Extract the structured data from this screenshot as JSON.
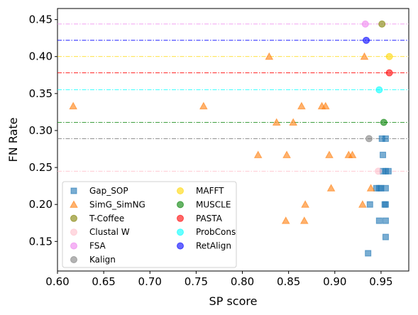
{
  "chart_data": {
    "type": "scatter",
    "xlabel": "SP score",
    "ylabel": "FN Rate",
    "xlim": [
      0.6,
      0.98
    ],
    "ylim": [
      0.11,
      0.465
    ],
    "x_ticks": [
      "0.60",
      "0.65",
      "0.70",
      "0.75",
      "0.80",
      "0.85",
      "0.90",
      "0.95"
    ],
    "y_ticks": [
      "0.15",
      "0.20",
      "0.25",
      "0.30",
      "0.35",
      "0.40",
      "0.45"
    ],
    "grid": false,
    "legend_position": "lower-left",
    "series": [
      {
        "name": "Gap_SOP",
        "marker": "square",
        "color": "#1f77b4",
        "points": [
          [
            0.936,
            0.134
          ],
          [
            0.955,
            0.156
          ],
          [
            0.955,
            0.178
          ],
          [
            0.948,
            0.178
          ],
          [
            0.954,
            0.2
          ],
          [
            0.955,
            0.2
          ],
          [
            0.938,
            0.2
          ],
          [
            0.945,
            0.222
          ],
          [
            0.95,
            0.222
          ],
          [
            0.955,
            0.222
          ],
          [
            0.948,
            0.222
          ],
          [
            0.952,
            0.245
          ],
          [
            0.955,
            0.245
          ],
          [
            0.958,
            0.245
          ],
          [
            0.952,
            0.267
          ],
          [
            0.955,
            0.289
          ],
          [
            0.951,
            0.289
          ]
        ]
      },
      {
        "name": "SimG_SimNG",
        "marker": "triangle",
        "color": "#ff7f0e",
        "points": [
          [
            0.617,
            0.333
          ],
          [
            0.758,
            0.333
          ],
          [
            0.864,
            0.333
          ],
          [
            0.886,
            0.333
          ],
          [
            0.89,
            0.333
          ],
          [
            0.829,
            0.4
          ],
          [
            0.932,
            0.4
          ],
          [
            0.837,
            0.311
          ],
          [
            0.855,
            0.311
          ],
          [
            0.817,
            0.267
          ],
          [
            0.848,
            0.267
          ],
          [
            0.894,
            0.267
          ],
          [
            0.915,
            0.267
          ],
          [
            0.919,
            0.267
          ],
          [
            0.896,
            0.222
          ],
          [
            0.939,
            0.222
          ],
          [
            0.868,
            0.2
          ],
          [
            0.93,
            0.2
          ],
          [
            0.847,
            0.178
          ],
          [
            0.867,
            0.178
          ]
        ]
      },
      {
        "name": "T-Coffee",
        "marker": "circle",
        "color": "#808000",
        "points": [
          [
            0.951,
            0.444
          ]
        ]
      },
      {
        "name": "Clustal W",
        "marker": "circle",
        "color": "#ffc0cb",
        "points": [
          [
            0.947,
            0.245
          ]
        ]
      },
      {
        "name": "FSA",
        "marker": "circle",
        "color": "#ee82ee",
        "points": [
          [
            0.933,
            0.444
          ]
        ]
      },
      {
        "name": "Kalign",
        "marker": "circle",
        "color": "#808080",
        "points": [
          [
            0.937,
            0.289
          ]
        ]
      },
      {
        "name": "MAFFT",
        "marker": "circle",
        "color": "#ffd700",
        "points": [
          [
            0.959,
            0.4
          ]
        ]
      },
      {
        "name": "MUSCLE",
        "marker": "circle",
        "color": "#008000",
        "points": [
          [
            0.953,
            0.311
          ]
        ]
      },
      {
        "name": "PASTA",
        "marker": "circle",
        "color": "#ff0000",
        "points": [
          [
            0.959,
            0.378
          ]
        ]
      },
      {
        "name": "ProbCons",
        "marker": "circle",
        "color": "#00ffff",
        "points": [
          [
            0.948,
            0.355
          ]
        ]
      },
      {
        "name": "RetAlign",
        "marker": "circle",
        "color": "#0000ff",
        "points": [
          [
            0.934,
            0.422
          ]
        ]
      }
    ],
    "reference_lines": [
      {
        "y": 0.444,
        "color": "#ee82ee"
      },
      {
        "y": 0.422,
        "color": "#0000ff"
      },
      {
        "y": 0.4,
        "color": "#ffd700"
      },
      {
        "y": 0.378,
        "color": "#ff0000"
      },
      {
        "y": 0.355,
        "color": "#00ffff"
      },
      {
        "y": 0.311,
        "color": "#008000"
      },
      {
        "y": 0.289,
        "color": "#808080"
      },
      {
        "y": 0.245,
        "color": "#ffc0cb"
      }
    ]
  }
}
